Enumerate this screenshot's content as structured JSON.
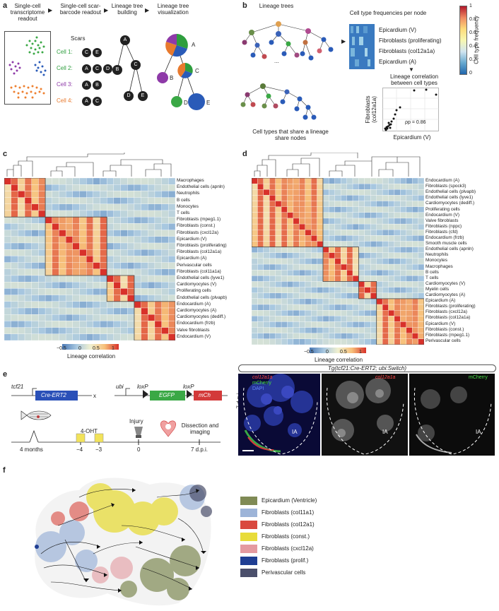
{
  "panel_a": {
    "label": "a",
    "steps": [
      "Single-cell transcriptome readout",
      "Single-cell scar-barcode readout",
      "Lineage tree building",
      "Lineage tree visualization"
    ],
    "scars_title": "Scars",
    "cells": [
      {
        "name": "Cell 1:",
        "color": "#2e9e3e",
        "scars": [
          "C",
          "E"
        ]
      },
      {
        "name": "Cell 2:",
        "color": "#2e9e3e",
        "scars": [
          "A",
          "C",
          "D"
        ]
      },
      {
        "name": "Cell 3:",
        "color": "#8e3aa8",
        "scars": [
          "A",
          "B"
        ]
      },
      {
        "name": "Cell 4:",
        "color": "#e87a2e",
        "scars": [
          "A",
          "C"
        ]
      }
    ],
    "tree_nodes": [
      "A",
      "B",
      "C",
      "D",
      "E"
    ]
  },
  "panel_b": {
    "label": "b",
    "trees_title": "Lineage trees",
    "ellipsis": "...",
    "share_caption": "Cell types that share a lineage share nodes",
    "freq_title": "Cell type frequencies per node",
    "freq_rows": [
      "Epicardium (V)",
      "Fibroblasts (proliferating)",
      "Fibroblasts (col12a1a)",
      "Epicardium (A)"
    ],
    "corr_title": "Lineage correlation between cell types",
    "scatter_ylabel": "Fibroblasts (col12a1a)",
    "scatter_xlabel": "Epicardium (V)",
    "rho": "ρp = 0.86",
    "colorbar_title": "Cell type frequency",
    "colorbar_ticks": [
      "1",
      "0.8",
      "0.6",
      "0.4",
      "0.2",
      "0"
    ]
  },
  "panel_c": {
    "label": "c",
    "rows": [
      "Macrophages",
      "Endothelial cells (apnln)",
      "Neutrophils",
      "B cells",
      "Monocytes",
      "T cells",
      "Fibroblasts (mpeg1.1)",
      "Fibroblasts (const.)",
      "Fibroblasts (cxcl12a)",
      "Epicardium (V)",
      "Fibroblasts (proliferating)",
      "Fibroblasts (col12a1a)",
      "Epicardium (A)",
      "Perivascular cells",
      "Fibroblasts (col11a1a)",
      "Endothelial cells (lyve1)",
      "Cardiomyocytes (V)",
      "Proliferating cells",
      "Endothelial cells (plvapb)",
      "Endocardium (A)",
      "Cardiomyocytes (A)",
      "Cardiomyocytes (dediff.)",
      "Endocardium (frzb)",
      "Valve fibroblasts",
      "Endocardium (V)"
    ],
    "scale_ticks": [
      "−0.5",
      "0",
      "0.5",
      "1"
    ],
    "scale_title": "Lineage correlation"
  },
  "panel_d": {
    "label": "d",
    "rows": [
      "Endocardium (A)",
      "Fibroblasts (spock3)",
      "Endothelial cells (plvapb)",
      "Endothelial cells (lyve1)",
      "Cardiomyocytes (dediff.)",
      "Proliferating cells",
      "Endocardium (V)",
      "Valve fibroblasts",
      "Fibroblasts (nppc)",
      "Fibroblasts (cfd)",
      "Endocardium (frzb)",
      "Smooth muscle cells",
      "Endothelial cells (apnln)",
      "Neutrophils",
      "Monocytes",
      "Macrophages",
      "B cells",
      "T cells",
      "Cardiomyocytes (V)",
      "Myelin cells",
      "Cardiomyocytes (A)",
      "Epicardium (A)",
      "Fibroblasts (proliferating)",
      "Fibroblasts (cxcl12a)",
      "Fibroblasts (col12a1a)",
      "Epicardium (V)",
      "Fibroblasts (const.)",
      "Fibroblasts (mpeg1.1)",
      "Perivascular cells"
    ],
    "scale_ticks": [
      "−0.5",
      "0",
      "0.5",
      "1"
    ],
    "scale_title": "Lineage correlation"
  },
  "panel_e": {
    "label": "e",
    "construct1_gene": "tcf21",
    "construct1_box": "Cre-ERT2",
    "cross": "x",
    "construct2_gene": "ubi",
    "loxp1": "loxP",
    "loxp2": "loxP",
    "egfp": "EGFP",
    "mch": "mCh",
    "timeline_labels": [
      "4 months",
      "−4",
      "−3",
      "0",
      "7 d.p.i."
    ],
    "ohtlabel": "4-OHT",
    "injury": "Injury",
    "dissection": "Dissection and imaging",
    "micro_title": "Tg(tcf21:Cre-ERT2; ubi:Switch)",
    "dpi_side": "7 d.p.i.",
    "ch1": [
      "col12a1a",
      "mCherry",
      "DAPI"
    ],
    "ch2": "col12a1a",
    "ch3": "mCherry",
    "ia": "IA"
  },
  "panel_f": {
    "label": "f",
    "legend": [
      {
        "text": "Epicardium (Ventricle)",
        "color": "#7f8a55"
      },
      {
        "text": "Fibroblasts (col11a1)",
        "color": "#9db4d8"
      },
      {
        "text": "Fibroblasts (col12a1)",
        "color": "#d9483f"
      },
      {
        "text": "Fibroblasts (const.)",
        "color": "#e8dc3a"
      },
      {
        "text": "Fibroblasts (cxcl12a)",
        "color": "#e49aa0"
      },
      {
        "text": "Fibroblasts (prolif.)",
        "color": "#1f3e93"
      },
      {
        "text": "Perivascular cells",
        "color": "#4b4f6b"
      }
    ]
  }
}
